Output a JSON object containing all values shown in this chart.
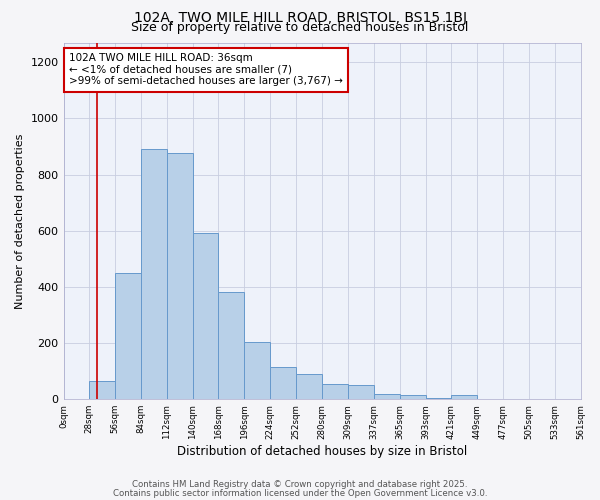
{
  "title": "102A, TWO MILE HILL ROAD, BRISTOL, BS15 1BJ",
  "subtitle": "Size of property relative to detached houses in Bristol",
  "xlabel": "Distribution of detached houses by size in Bristol",
  "ylabel": "Number of detached properties",
  "bar_color": "#b8d0e8",
  "bar_edge_color": "#6699cc",
  "bg_color": "#eef2fa",
  "grid_color": "#c8cee0",
  "fig_bg_color": "#f5f5f8",
  "vline_x": 36,
  "vline_color": "#cc0000",
  "bin_edges": [
    0,
    28,
    56,
    84,
    112,
    140,
    168,
    196,
    224,
    252,
    280,
    309,
    337,
    365,
    393,
    421,
    449,
    477,
    505,
    533,
    561
  ],
  "bar_heights": [
    0,
    65,
    450,
    890,
    875,
    590,
    380,
    205,
    115,
    90,
    55,
    50,
    20,
    15,
    5,
    15,
    2,
    0,
    2,
    1
  ],
  "ylim": [
    0,
    1270
  ],
  "yticks": [
    0,
    200,
    400,
    600,
    800,
    1000,
    1200
  ],
  "annotation_text": "102A TWO MILE HILL ROAD: 36sqm\n← <1% of detached houses are smaller (7)\n>99% of semi-detached houses are larger (3,767) →",
  "footer_line1": "Contains HM Land Registry data © Crown copyright and database right 2025.",
  "footer_line2": "Contains public sector information licensed under the Open Government Licence v3.0."
}
